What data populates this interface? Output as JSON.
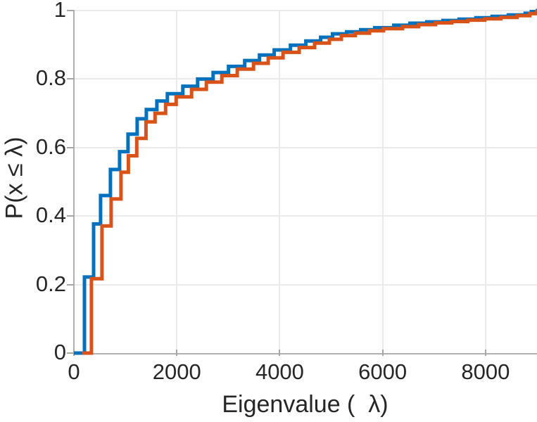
{
  "figure": {
    "background": "#ffffff"
  },
  "chart_data": {
    "type": "step",
    "subtype": "ecdf-stairs",
    "title": "",
    "xlabel": "Eigenvalue (  λ)",
    "ylabel": "P(x ≤ λ)",
    "xlim": [
      0,
      9000
    ],
    "ylim": [
      0,
      1
    ],
    "x_ticks": {
      "values": [
        0,
        2000,
        4000,
        6000,
        8000
      ],
      "labels": [
        "0",
        "2000",
        "4000",
        "6000",
        "8000"
      ]
    },
    "y_ticks": {
      "values": [
        0,
        0.2,
        0.4,
        0.6,
        0.8,
        1
      ],
      "labels": [
        "0",
        "0.2",
        "0.4",
        "0.6",
        "0.8",
        "1"
      ]
    },
    "grid": true,
    "legend": "none",
    "colors": {
      "axis": "#b0b0b0",
      "grid": "#ebebeb",
      "tick_mark": "#a6a6a6",
      "text": "#262626"
    },
    "series": [
      {
        "name": "blue-ecdf",
        "color": "#0072BD",
        "line_width": 5,
        "start_x": 0,
        "steps": [
          [
            205,
            0.222
          ],
          [
            383,
            0.377
          ],
          [
            519,
            0.46
          ],
          [
            710,
            0.536
          ],
          [
            888,
            0.588
          ],
          [
            1052,
            0.639
          ],
          [
            1230,
            0.684
          ],
          [
            1407,
            0.711
          ],
          [
            1612,
            0.736
          ],
          [
            1817,
            0.757
          ],
          [
            2117,
            0.779
          ],
          [
            2404,
            0.8
          ],
          [
            2705,
            0.819
          ],
          [
            3005,
            0.837
          ],
          [
            3320,
            0.854
          ],
          [
            3607,
            0.87
          ],
          [
            3893,
            0.885
          ],
          [
            4208,
            0.899
          ],
          [
            4508,
            0.911
          ],
          [
            4795,
            0.922
          ],
          [
            5027,
            0.932
          ],
          [
            5300,
            0.938
          ],
          [
            5574,
            0.944
          ],
          [
            5847,
            0.95
          ],
          [
            6216,
            0.957
          ],
          [
            6530,
            0.963
          ],
          [
            6858,
            0.967
          ],
          [
            7172,
            0.971
          ],
          [
            7486,
            0.975
          ],
          [
            7814,
            0.979
          ],
          [
            8128,
            0.983
          ],
          [
            8443,
            0.987
          ],
          [
            8770,
            0.992
          ],
          [
            8890,
            0.997
          ],
          [
            9010,
            1.0
          ]
        ]
      },
      {
        "name": "orange-ecdf",
        "color": "#D95319",
        "line_width": 5,
        "start_x": 160,
        "steps": [
          [
            340,
            0.217
          ],
          [
            546,
            0.371
          ],
          [
            724,
            0.45
          ],
          [
            915,
            0.528
          ],
          [
            1058,
            0.576
          ],
          [
            1222,
            0.627
          ],
          [
            1400,
            0.675
          ],
          [
            1577,
            0.7
          ],
          [
            1782,
            0.726
          ],
          [
            1987,
            0.748
          ],
          [
            2287,
            0.77
          ],
          [
            2574,
            0.791
          ],
          [
            2875,
            0.81
          ],
          [
            3175,
            0.829
          ],
          [
            3490,
            0.846
          ],
          [
            3777,
            0.862
          ],
          [
            4063,
            0.878
          ],
          [
            4378,
            0.892
          ],
          [
            4678,
            0.905
          ],
          [
            4965,
            0.916
          ],
          [
            5197,
            0.927
          ],
          [
            5470,
            0.934
          ],
          [
            5744,
            0.941
          ],
          [
            6017,
            0.947
          ],
          [
            6386,
            0.953
          ],
          [
            6700,
            0.959
          ],
          [
            7028,
            0.964
          ],
          [
            7342,
            0.968
          ],
          [
            7656,
            0.972
          ],
          [
            7984,
            0.976
          ],
          [
            8298,
            0.98
          ],
          [
            8613,
            0.985
          ],
          [
            8860,
            0.991
          ],
          [
            8990,
            0.996
          ],
          [
            9120,
            1.0
          ]
        ]
      }
    ]
  }
}
